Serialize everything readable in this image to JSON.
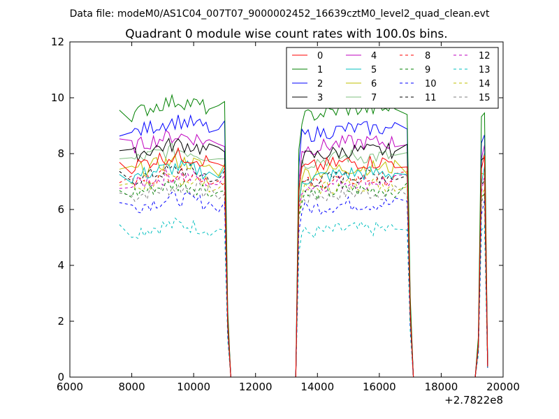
{
  "suptitle": "Data file: modeM0/AS1C04_007T07_9000002452_16639cztM0_level2_quad_clean.evt",
  "chart_data": {
    "type": "line",
    "title": "Quadrant 0 module wise count rates with 100.0s bins.",
    "xlabel": "",
    "ylabel": "",
    "x_offset_label": "+2.7822e8",
    "xlim": [
      6000,
      20000
    ],
    "ylim": [
      0,
      12
    ],
    "x_ticks": [
      6000,
      8000,
      10000,
      12000,
      14000,
      16000,
      18000,
      20000
    ],
    "y_ticks": [
      0,
      2,
      4,
      6,
      8,
      10,
      12
    ],
    "grid": false,
    "legend_position": "top-right",
    "series": [
      {
        "name": "0",
        "color": "#ff0000",
        "dash": "solid",
        "base": 7.7
      },
      {
        "name": "1",
        "color": "#008000",
        "dash": "solid",
        "base": 9.6
      },
      {
        "name": "2",
        "color": "#0000ff",
        "dash": "solid",
        "base": 8.9
      },
      {
        "name": "3",
        "color": "#000000",
        "dash": "solid",
        "base": 8.1
      },
      {
        "name": "4",
        "color": "#bf00bf",
        "dash": "solid",
        "base": 8.4
      },
      {
        "name": "5",
        "color": "#00bfbf",
        "dash": "solid",
        "base": 7.3
      },
      {
        "name": "6",
        "color": "#bfbf00",
        "dash": "solid",
        "base": 7.5
      },
      {
        "name": "7",
        "color": "#7fbf7f",
        "dash": "solid",
        "base": 7.9
      },
      {
        "name": "8",
        "color": "#ff0000",
        "dash": "dashed",
        "base": 7.1
      },
      {
        "name": "9",
        "color": "#008000",
        "dash": "dashed",
        "base": 6.7
      },
      {
        "name": "10",
        "color": "#0000ff",
        "dash": "dashed",
        "base": 6.2
      },
      {
        "name": "11",
        "color": "#000000",
        "dash": "dashed",
        "base": 7.2
      },
      {
        "name": "12",
        "color": "#bf00bf",
        "dash": "dashed",
        "base": 7.0
      },
      {
        "name": "13",
        "color": "#00bfbf",
        "dash": "dashed",
        "base": 5.3
      },
      {
        "name": "14",
        "color": "#bfbf00",
        "dash": "dashed",
        "base": 6.9
      },
      {
        "name": "15",
        "color": "#7f7f7f",
        "dash": "dashed",
        "base": 6.6
      }
    ],
    "time_segments": [
      {
        "x": [
          7600,
          8000,
          8500,
          9000,
          9500,
          10000,
          10500,
          10800,
          11000,
          11100,
          11200
        ],
        "level": [
          1.0,
          0.98,
          1.0,
          1.02,
          1.03,
          1.02,
          1.0,
          0.99,
          1.0,
          0.25,
          0.0
        ]
      },
      {
        "x": [
          11200,
          13300
        ],
        "level": [
          0.0,
          0.0
        ]
      },
      {
        "x": [
          13300,
          13400,
          13500,
          14000,
          14500,
          15000,
          15500,
          16000,
          16500,
          16900,
          17000,
          17100
        ],
        "level": [
          0.0,
          0.85,
          0.97,
          0.98,
          0.99,
          1.0,
          1.0,
          1.0,
          1.0,
          1.0,
          0.3,
          0.0
        ]
      },
      {
        "x": [
          17100,
          19100
        ],
        "level": [
          0.0,
          0.0
        ]
      },
      {
        "x": [
          19100,
          19200,
          19300,
          19400,
          19500
        ],
        "level": [
          0.0,
          0.15,
          0.95,
          1.0,
          0.05
        ]
      }
    ]
  }
}
